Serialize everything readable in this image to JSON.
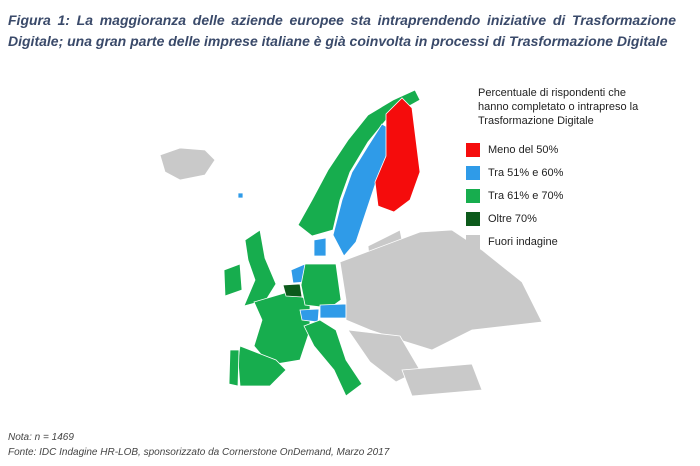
{
  "figure": {
    "title": "Figura 1: La maggioranza delle aziende europee sta intraprendendo iniziative di Trasformazione Digitale; una gran parte delle imprese italiane è già coinvolta in processi di Trasformazione Digitale",
    "legend": {
      "title": "Percentuale di rispondenti che hanno completato o intrapreso la Trasformazione Digitale",
      "items": [
        {
          "label": "Meno del 50%",
          "color": "#f50c0c"
        },
        {
          "label": "Tra 51% e 60%",
          "color": "#2f9be8"
        },
        {
          "label": "Tra 61% e 70%",
          "color": "#17ad4e"
        },
        {
          "label": "Oltre 70%",
          "color": "#0c5a1b"
        },
        {
          "label": "Fuori indagine",
          "color": "#c9c9c9"
        }
      ]
    },
    "note": "Nota: n = 1469",
    "source": "Fonte: IDC Indagine HR-LOB, sponsorizzato da Cornerstone OnDemand, Marzo 2017"
  }
}
